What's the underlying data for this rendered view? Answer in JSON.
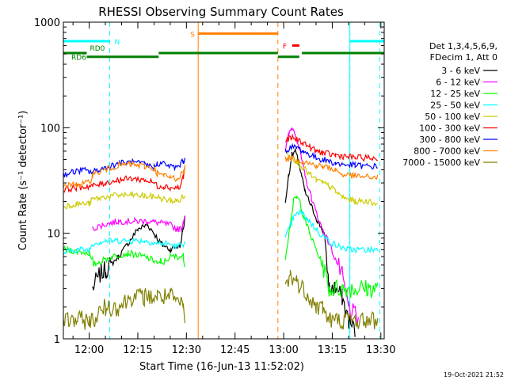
{
  "chart_data": {
    "type": "line",
    "title": "RHESSI Observing Summary Count Rates",
    "xlabel": "Start Time (16-Jun-13 11:52:02)",
    "ylabel": "Count Rate (s⁻¹ detector⁻¹)",
    "x_unit": "minutes after 11:52:02",
    "xlim": [
      0,
      99
    ],
    "ylim": [
      1,
      1000
    ],
    "y_scale": "log",
    "x_ticks": [
      {
        "t": 7.97,
        "label": "12:00"
      },
      {
        "t": 22.97,
        "label": "12:15"
      },
      {
        "t": 37.97,
        "label": "12:30"
      },
      {
        "t": 52.97,
        "label": "12:45"
      },
      {
        "t": 67.97,
        "label": "13:00"
      },
      {
        "t": 82.97,
        "label": "13:15"
      },
      {
        "t": 97.97,
        "label": "13:30"
      }
    ],
    "y_ticks": [
      {
        "v": 1,
        "label": "1"
      },
      {
        "v": 10,
        "label": "10"
      },
      {
        "v": 100,
        "label": "100"
      },
      {
        "v": 1000,
        "label": "1000"
      }
    ],
    "legend": {
      "header": [
        "Det 1,3,4,5,6,9,",
        "FDecim 1, Att 0"
      ],
      "placement": "right"
    },
    "series": [
      {
        "name": "3 - 6 keV",
        "color": "#000000",
        "points": [
          [
            9,
            3
          ],
          [
            11,
            4
          ],
          [
            13,
            4.5
          ],
          [
            17,
            6
          ],
          [
            20,
            8
          ],
          [
            23,
            11
          ],
          [
            26,
            12
          ],
          [
            28,
            10
          ],
          [
            30,
            8
          ],
          [
            33,
            7
          ],
          [
            35,
            7.5
          ],
          [
            36,
            7.5
          ],
          [
            37,
            11
          ],
          [
            37.5,
            14
          ],
          [
            68.5,
            20
          ],
          [
            69.5,
            35
          ],
          [
            70.5,
            55
          ],
          [
            71.5,
            60
          ],
          [
            72.5,
            48
          ],
          [
            73.5,
            35
          ],
          [
            74.5,
            25
          ],
          [
            76.5,
            18
          ],
          [
            78.5,
            13
          ],
          [
            80.5,
            10
          ],
          [
            82,
            3
          ],
          [
            84,
            3
          ],
          [
            86,
            2.5
          ],
          [
            88,
            1.5
          ],
          [
            90,
            1.2
          ]
        ]
      },
      {
        "name": "6 - 12 keV",
        "color": "#ff00ff",
        "points": [
          [
            9,
            11
          ],
          [
            12,
            12
          ],
          [
            17,
            13
          ],
          [
            22,
            13
          ],
          [
            26,
            13
          ],
          [
            30,
            12.5
          ],
          [
            33,
            12
          ],
          [
            35,
            11
          ],
          [
            36.5,
            11
          ],
          [
            37,
            13
          ],
          [
            37.5,
            15
          ],
          [
            68.5,
            60
          ],
          [
            69.5,
            85
          ],
          [
            70.5,
            100
          ],
          [
            71.5,
            90
          ],
          [
            72.5,
            70
          ],
          [
            73.5,
            50
          ],
          [
            74.5,
            35
          ],
          [
            76.5,
            22
          ],
          [
            78.5,
            14
          ],
          [
            80.5,
            10
          ],
          [
            82,
            8
          ],
          [
            86,
            4
          ],
          [
            88,
            2
          ],
          [
            91,
            1.5
          ]
        ]
      },
      {
        "name": "12 - 25 keV",
        "color": "#00ff00",
        "points": [
          [
            0,
            7
          ],
          [
            8,
            6.5
          ],
          [
            9,
            5
          ],
          [
            12,
            5.5
          ],
          [
            15,
            6
          ],
          [
            20,
            6.5
          ],
          [
            25,
            6
          ],
          [
            28,
            5.5
          ],
          [
            30,
            5
          ],
          [
            33,
            6
          ],
          [
            35,
            6
          ],
          [
            37,
            6
          ],
          [
            37.5,
            5
          ],
          [
            68.5,
            6
          ],
          [
            70,
            12
          ],
          [
            71,
            20
          ],
          [
            72,
            22
          ],
          [
            73,
            20
          ],
          [
            74,
            15
          ],
          [
            76,
            10
          ],
          [
            78,
            7
          ],
          [
            80,
            5
          ],
          [
            82,
            3
          ],
          [
            86,
            3
          ],
          [
            90,
            3
          ],
          [
            94,
            3
          ],
          [
            97,
            3
          ]
        ]
      },
      {
        "name": "25 - 50 keV",
        "color": "#00ffff",
        "points": [
          [
            0,
            6.5
          ],
          [
            4,
            7
          ],
          [
            8,
            7
          ],
          [
            9,
            8
          ],
          [
            13,
            8.5
          ],
          [
            17,
            8.5
          ],
          [
            21,
            8.5
          ],
          [
            25,
            8.5
          ],
          [
            29,
            8
          ],
          [
            32,
            8
          ],
          [
            35,
            7.5
          ],
          [
            37,
            8
          ],
          [
            37.5,
            8
          ],
          [
            68.5,
            9
          ],
          [
            71,
            14
          ],
          [
            73,
            16
          ],
          [
            75,
            14
          ],
          [
            77,
            12
          ],
          [
            79,
            10
          ],
          [
            81,
            9
          ],
          [
            83,
            8
          ],
          [
            85,
            7.5
          ],
          [
            88,
            7
          ],
          [
            91,
            7
          ],
          [
            94,
            7
          ],
          [
            97,
            7
          ]
        ]
      },
      {
        "name": "50 - 100 keV",
        "color": "#cccc00",
        "points": [
          [
            0,
            18
          ],
          [
            4,
            19
          ],
          [
            8,
            19
          ],
          [
            9,
            21
          ],
          [
            13,
            22
          ],
          [
            17,
            23
          ],
          [
            21,
            23
          ],
          [
            25,
            22.5
          ],
          [
            29,
            22
          ],
          [
            31,
            21
          ],
          [
            33,
            20.5
          ],
          [
            35,
            20
          ],
          [
            37,
            22
          ],
          [
            37.5,
            22
          ],
          [
            68.5,
            60
          ],
          [
            70,
            55
          ],
          [
            72,
            48
          ],
          [
            74,
            42
          ],
          [
            76,
            36
          ],
          [
            78,
            32
          ],
          [
            80,
            30
          ],
          [
            82,
            28
          ],
          [
            84,
            25
          ],
          [
            86,
            22
          ],
          [
            90,
            20
          ],
          [
            94,
            20
          ],
          [
            97,
            19
          ]
        ]
      },
      {
        "name": "100 - 300 keV",
        "color": "#ff0000",
        "points": [
          [
            0,
            26
          ],
          [
            4,
            27
          ],
          [
            8,
            28
          ],
          [
            9,
            28
          ],
          [
            13,
            30
          ],
          [
            17,
            32
          ],
          [
            21,
            33
          ],
          [
            25,
            32
          ],
          [
            28,
            30
          ],
          [
            29,
            28
          ],
          [
            31,
            28
          ],
          [
            33,
            27
          ],
          [
            35,
            27
          ],
          [
            36,
            27
          ],
          [
            37,
            35
          ],
          [
            37.5,
            40
          ],
          [
            68.5,
            75
          ],
          [
            70,
            80
          ],
          [
            72,
            78
          ],
          [
            74,
            72
          ],
          [
            76,
            66
          ],
          [
            78,
            60
          ],
          [
            80,
            58
          ],
          [
            82,
            56
          ],
          [
            84,
            55
          ],
          [
            86,
            54
          ],
          [
            90,
            52
          ],
          [
            94,
            52
          ],
          [
            97,
            51
          ]
        ]
      },
      {
        "name": "300 - 800 keV",
        "color": "#0000ff",
        "points": [
          [
            0,
            36
          ],
          [
            3,
            38
          ],
          [
            6,
            40
          ],
          [
            8,
            38
          ],
          [
            9,
            38
          ],
          [
            13,
            42
          ],
          [
            17,
            46
          ],
          [
            21,
            47
          ],
          [
            25,
            45
          ],
          [
            28,
            42
          ],
          [
            29,
            46
          ],
          [
            31,
            46
          ],
          [
            33,
            43
          ],
          [
            35,
            42
          ],
          [
            37,
            48
          ],
          [
            37.5,
            52
          ],
          [
            68.5,
            60
          ],
          [
            70,
            65
          ],
          [
            72,
            65
          ],
          [
            74,
            60
          ],
          [
            76,
            55
          ],
          [
            78,
            52
          ],
          [
            80,
            50
          ],
          [
            82,
            48
          ],
          [
            84,
            46
          ],
          [
            86,
            45
          ],
          [
            90,
            44
          ],
          [
            94,
            43
          ],
          [
            97,
            43
          ]
        ]
      },
      {
        "name": "800 - 7000 keV",
        "color": "#ff8000",
        "points": [
          [
            0,
            28
          ],
          [
            4,
            29
          ],
          [
            8,
            30
          ],
          [
            9,
            36
          ],
          [
            13,
            40
          ],
          [
            17,
            44
          ],
          [
            21,
            45
          ],
          [
            25,
            43
          ],
          [
            28,
            41
          ],
          [
            29,
            37
          ],
          [
            31,
            35
          ],
          [
            33,
            34
          ],
          [
            35,
            33
          ],
          [
            37,
            38
          ],
          [
            37.5,
            42
          ],
          [
            68.5,
            50
          ],
          [
            70,
            52
          ],
          [
            72,
            50
          ],
          [
            74,
            48
          ],
          [
            76,
            46
          ],
          [
            78,
            44
          ],
          [
            80,
            43
          ],
          [
            82,
            42
          ],
          [
            84,
            40
          ],
          [
            86,
            36
          ],
          [
            90,
            35
          ],
          [
            94,
            34
          ],
          [
            97,
            34
          ]
        ]
      },
      {
        "name": "7000 - 15000 keV",
        "color": "#808000",
        "points": [
          [
            0,
            1.5
          ],
          [
            4,
            1.5
          ],
          [
            8,
            1.5
          ],
          [
            9,
            1.5
          ],
          [
            13,
            2
          ],
          [
            17,
            2
          ],
          [
            21,
            2.5
          ],
          [
            25,
            2.5
          ],
          [
            29,
            2.5
          ],
          [
            33,
            2.5
          ],
          [
            37,
            2
          ],
          [
            37.5,
            1.5
          ],
          [
            68.5,
            3
          ],
          [
            70,
            4
          ],
          [
            72,
            3.5
          ],
          [
            74,
            3
          ],
          [
            76,
            2.5
          ],
          [
            78,
            2
          ],
          [
            80,
            2
          ],
          [
            82,
            1.5
          ],
          [
            84,
            1.5
          ],
          [
            88,
            1.5
          ],
          [
            92,
            1.5
          ],
          [
            97,
            1.5
          ]
        ]
      }
    ],
    "markers": [
      {
        "label": "N",
        "color": "#00ffff",
        "y": 660,
        "segments": [
          [
            0,
            14.3
          ],
          [
            88.4,
            99
          ]
        ],
        "dashed_lines": [
          14.3,
          88.4,
          97.6
        ],
        "solid_lines": [
          0,
          88.4
        ]
      },
      {
        "label": "S",
        "color": "#ff8000",
        "y": 780,
        "segments": [
          [
            41.6,
            66.2
          ]
        ],
        "dashed_lines": [
          66.2
        ],
        "solid_lines": [
          41.6
        ]
      },
      {
        "label": "F",
        "color": "#ff0000",
        "y": 600,
        "segments": [
          [
            70.6,
            72.8
          ]
        ]
      },
      {
        "label": "RD0",
        "color": "#008000",
        "y": 510,
        "segments": [
          [
            0,
            7.2
          ],
          [
            29.4,
            66.2
          ],
          [
            73.6,
            99
          ]
        ]
      },
      {
        "label": "RD6",
        "color": "#008000",
        "y": 470,
        "segments": [
          [
            7.2,
            29.4
          ],
          [
            66.2,
            72.8
          ]
        ]
      }
    ]
  },
  "footer": {
    "date_stamp": "19-Oct-2021 21:52"
  }
}
